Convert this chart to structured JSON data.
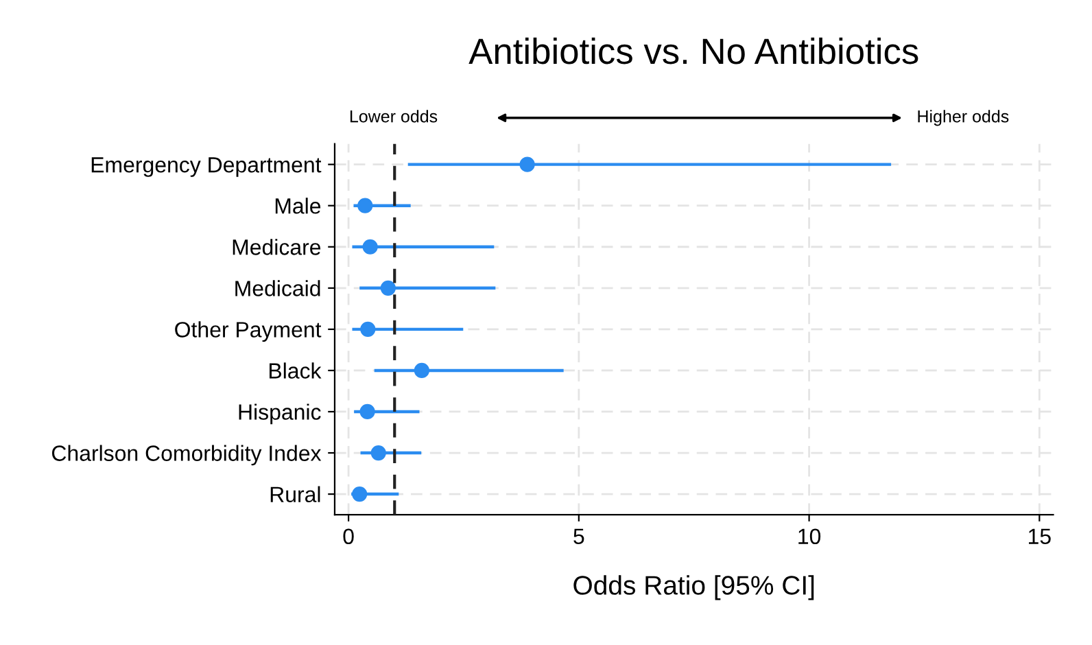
{
  "chart_data": {
    "type": "scatter",
    "orientation": "horizontal",
    "title": "Antibiotics vs. No Antibiotics",
    "xlabel": "Odds Ratio [95% CI]",
    "categories": [
      "Emergency Department",
      "Male",
      "Medicare",
      "Medicaid",
      "Other Payment",
      "Black",
      "Hispanic",
      "Charlson Comorbidity Index",
      "Rural"
    ],
    "color": "#2b8cf0",
    "values": [
      3.88,
      0.36,
      0.47,
      0.86,
      0.42,
      1.59,
      0.41,
      0.65,
      0.24
    ],
    "errors": [
      [
        1.29,
        11.78
      ],
      [
        0.11,
        1.35
      ],
      [
        0.08,
        3.16
      ],
      [
        0.24,
        3.19
      ],
      [
        0.08,
        2.49
      ],
      [
        0.56,
        4.67
      ],
      [
        0.12,
        1.54
      ],
      [
        0.26,
        1.58
      ],
      [
        0.06,
        1.09
      ]
    ],
    "marker": "circle",
    "xlim": [
      -0.3,
      15.3
    ],
    "xticks": [
      0,
      5,
      10,
      15
    ],
    "grid": true,
    "ref_lines": [
      {
        "axis": "x",
        "value": 1,
        "color": "#222222",
        "line_style": "dashed"
      }
    ],
    "annotations": [
      "Lower odds",
      "Higher odds"
    ]
  }
}
